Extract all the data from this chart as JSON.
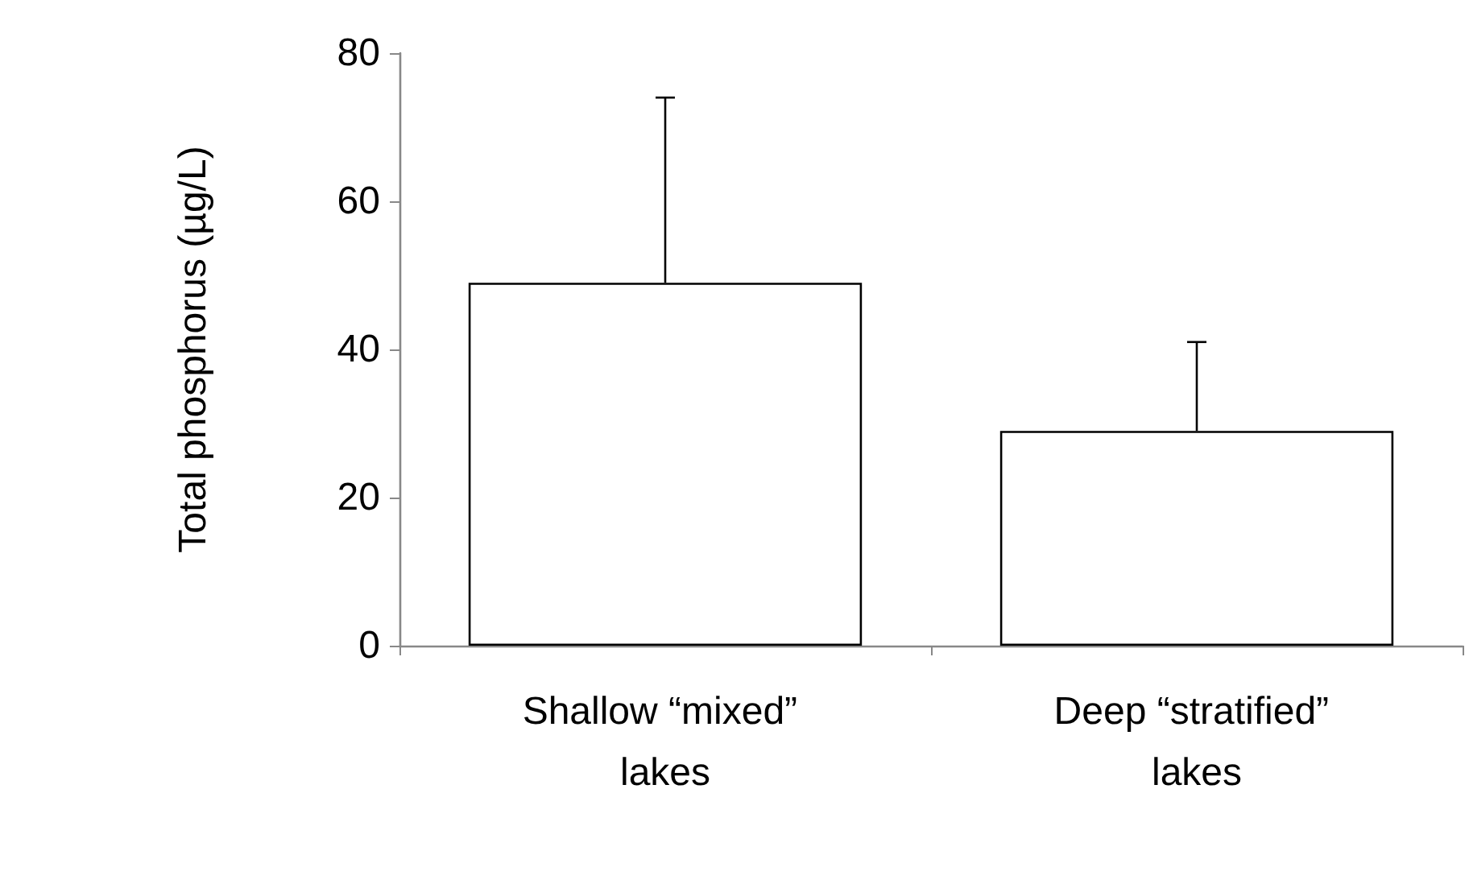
{
  "chart_data": {
    "type": "bar",
    "ylabel": "Total phosphorus (µg/L)",
    "categories": [
      "Shallow “mixed” lakes",
      "Deep “stratified” lakes"
    ],
    "values": [
      49,
      29
    ],
    "color": "#ffffff",
    "errors": [
      [
        49,
        74
      ],
      [
        29,
        41
      ]
    ],
    "ylim": [
      0,
      80
    ],
    "yticks": [
      0,
      20,
      40,
      60,
      80
    ],
    "grid": false
  }
}
